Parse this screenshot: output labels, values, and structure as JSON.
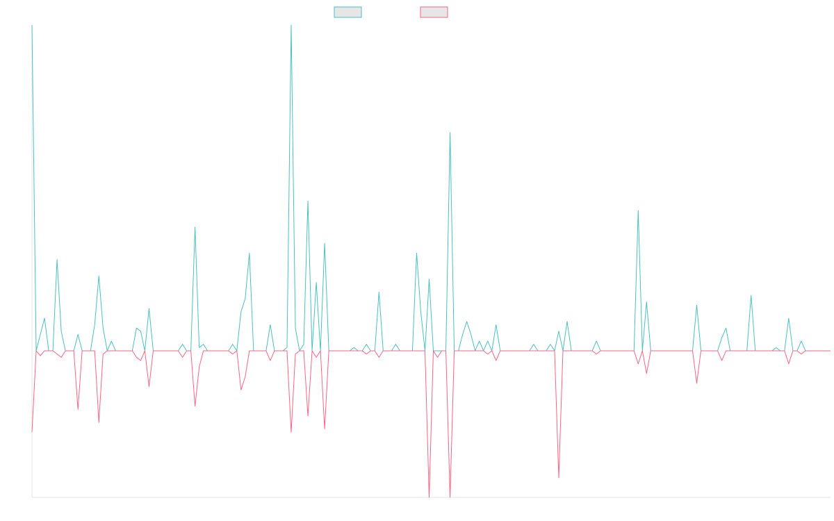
{
  "chart_data": {
    "type": "line",
    "categories": [
      null,
      null,
      null,
      null,
      null,
      null,
      null,
      null,
      null,
      null,
      null,
      null,
      null,
      null,
      null,
      null,
      null,
      null,
      null,
      null,
      null,
      null,
      null,
      null,
      null,
      null,
      null,
      null,
      null,
      null,
      null,
      null,
      null,
      null,
      null,
      null,
      null,
      null,
      null,
      null,
      null,
      null,
      null,
      null,
      null,
      null,
      null,
      null,
      null,
      null,
      null,
      null,
      null,
      null,
      null,
      null,
      null,
      null,
      null,
      null,
      null,
      null,
      null,
      null,
      null,
      null,
      null,
      null,
      null,
      null,
      null,
      null,
      null,
      null,
      null,
      null,
      null,
      null,
      null,
      null,
      null,
      null,
      null,
      null,
      null,
      null,
      null,
      null,
      null,
      null,
      null,
      null,
      null,
      null,
      null,
      null,
      null,
      null,
      null,
      null,
      null,
      null,
      null,
      null,
      null,
      null,
      null,
      null,
      null,
      null,
      null,
      null,
      null,
      null,
      null,
      null,
      null,
      null,
      null,
      null,
      null,
      null,
      null,
      null,
      null,
      null,
      null,
      null,
      null,
      null,
      null,
      null,
      null,
      null,
      null,
      null,
      null,
      null,
      null,
      null,
      null,
      null,
      null,
      null,
      null,
      null,
      null,
      null,
      null,
      null,
      null,
      null,
      null,
      null,
      null,
      null,
      null,
      null,
      null,
      null,
      null,
      null,
      null,
      null,
      null,
      null,
      null,
      null,
      null,
      null,
      null,
      null,
      null,
      null,
      null,
      null,
      null,
      null,
      null,
      null,
      null,
      null,
      null,
      null,
      null,
      null,
      null,
      null,
      null,
      null,
      null,
      null
    ],
    "series": [
      {
        "color": "#4bc0c0",
        "values": [
          100,
          0,
          5,
          10,
          0,
          0,
          28,
          6,
          0,
          0,
          0,
          5,
          0,
          0,
          0,
          8,
          23,
          7,
          0,
          3,
          0,
          0,
          0,
          0,
          0,
          7,
          6,
          0,
          13,
          0,
          0,
          0,
          0,
          0,
          0,
          0,
          2,
          0,
          0,
          38,
          1,
          2,
          0,
          0,
          0,
          0,
          0,
          0,
          2,
          0,
          12,
          16,
          30,
          0,
          0,
          0,
          0,
          8,
          0,
          0,
          0,
          1,
          100,
          7,
          0,
          2,
          46,
          0,
          21,
          0,
          33,
          0,
          0,
          0,
          0,
          0,
          0,
          1,
          0,
          0,
          2,
          0,
          0,
          18,
          0,
          0,
          0,
          2,
          0,
          0,
          0,
          0,
          30,
          12,
          0,
          22,
          0,
          0,
          0,
          0,
          67,
          0,
          0,
          5,
          9,
          5,
          0,
          3,
          0,
          3,
          0,
          8,
          0,
          0,
          0,
          0,
          0,
          0,
          0,
          0,
          2,
          0,
          0,
          0,
          2,
          0,
          6,
          0,
          9,
          0,
          0,
          0,
          0,
          0,
          0,
          3,
          0,
          0,
          0,
          0,
          0,
          0,
          0,
          0,
          0,
          43,
          0,
          15,
          0,
          0,
          0,
          0,
          0,
          0,
          0,
          0,
          0,
          0,
          0,
          14,
          0,
          0,
          0,
          0,
          0,
          4,
          7,
          0,
          0,
          0,
          0,
          0,
          17,
          0,
          0,
          0,
          0,
          0,
          1,
          0,
          0,
          10,
          0,
          0,
          3,
          0,
          0,
          0,
          0,
          0,
          0,
          0
        ]
      },
      {
        "color": "#ff6384",
        "values": [
          -25,
          0,
          -1.5,
          0,
          0,
          0,
          -1,
          -2,
          0,
          0,
          0,
          -18,
          0,
          0,
          0,
          0,
          -22,
          -1,
          0,
          0,
          0,
          0,
          0,
          0,
          0,
          -2,
          -3,
          0,
          -11,
          0,
          0,
          0,
          0,
          0,
          0,
          0,
          -2,
          0,
          0,
          -17,
          -5,
          0,
          0,
          0,
          0,
          0,
          0,
          0,
          -1,
          0,
          -12,
          -8,
          0,
          0,
          0,
          0,
          0,
          -3,
          0,
          0,
          0,
          0,
          -25,
          -1,
          0,
          0,
          -20,
          0,
          -2,
          0,
          -24,
          0,
          0,
          0,
          0,
          0,
          0,
          0,
          0,
          0,
          -1,
          0,
          0,
          -2,
          0,
          0,
          0,
          0,
          0,
          0,
          0,
          0,
          0,
          0,
          0,
          -45,
          0,
          -2,
          0,
          0,
          -45,
          0,
          0,
          0,
          0,
          0,
          0,
          0,
          0,
          -1,
          0,
          -3,
          0,
          0,
          0,
          0,
          0,
          0,
          0,
          0,
          0,
          0,
          0,
          0,
          0,
          0,
          -39,
          0,
          0,
          0,
          0,
          0,
          0,
          0,
          0,
          -1,
          0,
          0,
          0,
          0,
          0,
          0,
          0,
          0,
          0,
          -4,
          0,
          -7,
          0,
          0,
          0,
          0,
          0,
          0,
          0,
          0,
          0,
          0,
          0,
          -10,
          0,
          0,
          0,
          0,
          0,
          -3,
          0,
          0,
          0,
          0,
          0,
          0,
          0,
          0,
          0,
          0,
          0,
          0,
          0,
          0,
          0,
          -4,
          0,
          0,
          -1,
          0,
          0,
          0,
          0,
          0,
          0,
          0
        ]
      }
    ],
    "ylim": [
      -45,
      100
    ]
  }
}
